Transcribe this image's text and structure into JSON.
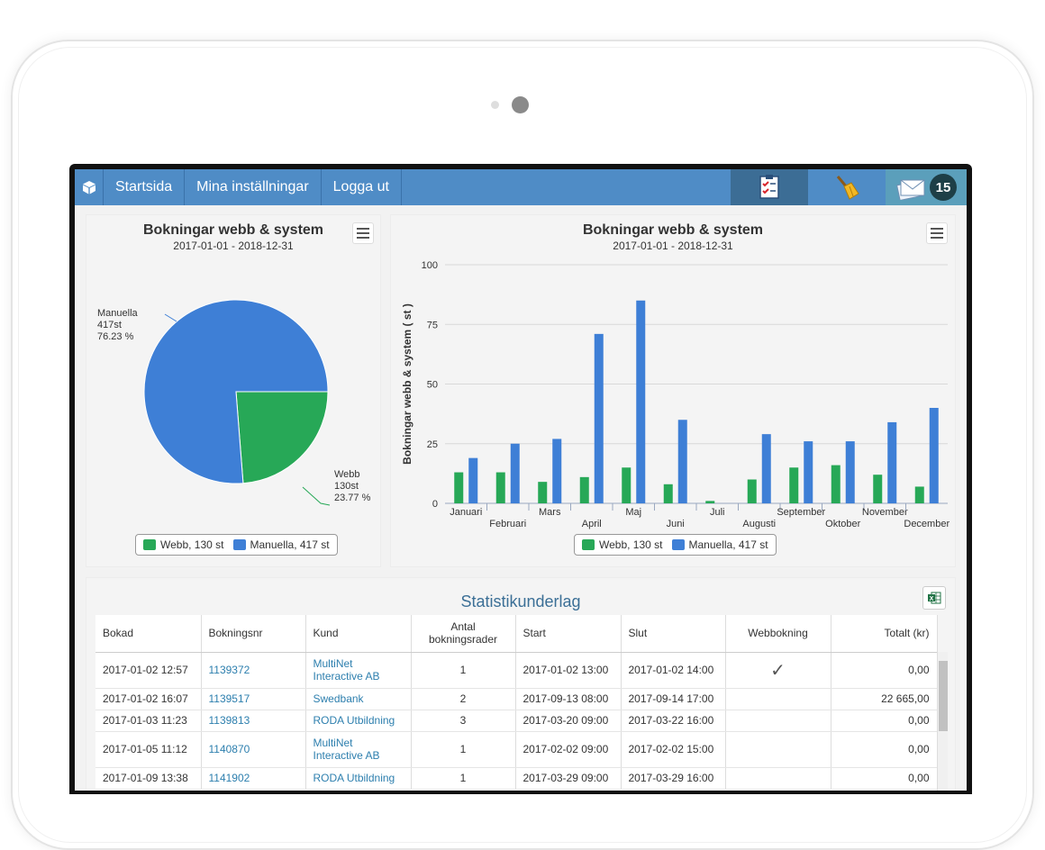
{
  "nav": {
    "items": [
      "Startsida",
      "Mina inställningar",
      "Logga ut"
    ],
    "badge_count": "15",
    "icons": [
      "box-icon",
      "checklist-icon",
      "broom-icon",
      "mail-icon"
    ]
  },
  "pie_chart": {
    "title": "Bokningar webb & system",
    "subtitle": "2017-01-01 - 2018-12-31",
    "label_manuella": [
      "Manuella",
      "417st",
      "76.23 %"
    ],
    "label_webb": [
      "Webb",
      "130st",
      "23.77 %"
    ],
    "legend": [
      "Webb, 130 st",
      "Manuella, 417 st"
    ]
  },
  "bar_chart": {
    "title": "Bokningar webb & system",
    "subtitle": "2017-01-01 - 2018-12-31",
    "legend": [
      "Webb, 130 st",
      "Manuella, 417 st"
    ]
  },
  "colors": {
    "webb": "#27a857",
    "manuella": "#3e7fd6",
    "nav": "#4f8cc6"
  },
  "chart_data": [
    {
      "type": "pie",
      "title": "Bokningar webb & system",
      "subtitle": "2017-01-01 - 2018-12-31",
      "slices": [
        {
          "name": "Webb",
          "value": 130,
          "percent": 23.77
        },
        {
          "name": "Manuella",
          "value": 417,
          "percent": 76.23
        }
      ],
      "legend_placement": "bottom"
    },
    {
      "type": "bar",
      "title": "Bokningar webb & system",
      "subtitle": "2017-01-01 - 2018-12-31",
      "ylabel": "Bokningar webb & system ( st )",
      "ylim": [
        0,
        100
      ],
      "yticks": [
        "0",
        "25",
        "50",
        "75",
        "100"
      ],
      "categories": [
        "Januari",
        "Februari",
        "Mars",
        "April",
        "Maj",
        "Juni",
        "Juli",
        "Augusti",
        "September",
        "Oktober",
        "November",
        "December"
      ],
      "series": [
        {
          "name": "Webb",
          "values": [
            13,
            13,
            9,
            11,
            15,
            8,
            1,
            10,
            15,
            16,
            12,
            7
          ]
        },
        {
          "name": "Manuella",
          "values": [
            19,
            25,
            27,
            71,
            85,
            35,
            0,
            29,
            26,
            26,
            34,
            40
          ]
        }
      ],
      "grid": true,
      "legend_placement": "bottom"
    }
  ],
  "table": {
    "title": "Statistikunderlag",
    "headers": [
      "Bokad",
      "Bokningsnr",
      "Kund",
      "Antal bokningsrader",
      "Start",
      "Slut",
      "Webbokning",
      "Totalt (kr)"
    ],
    "rows": [
      {
        "bokad": "2017-01-02 12:57",
        "nr": "1139372",
        "kund": "MultiNet Interactive AB",
        "antal": "1",
        "start": "2017-01-02 13:00",
        "slut": "2017-01-02 14:00",
        "webb": "✓",
        "totalt": "0,00"
      },
      {
        "bokad": "2017-01-02 16:07",
        "nr": "1139517",
        "kund": "Swedbank",
        "antal": "2",
        "start": "2017-09-13 08:00",
        "slut": "2017-09-14 17:00",
        "webb": "",
        "totalt": "22 665,00"
      },
      {
        "bokad": "2017-01-03 11:23",
        "nr": "1139813",
        "kund": "RODA Utbildning",
        "antal": "3",
        "start": "2017-03-20 09:00",
        "slut": "2017-03-22 16:00",
        "webb": "",
        "totalt": "0,00"
      },
      {
        "bokad": "2017-01-05 11:12",
        "nr": "1140870",
        "kund": "MultiNet Interactive AB",
        "antal": "1",
        "start": "2017-02-02 09:00",
        "slut": "2017-02-02 15:00",
        "webb": "",
        "totalt": "0,00"
      },
      {
        "bokad": "2017-01-09 13:38",
        "nr": "1141902",
        "kund": "RODA Utbildning",
        "antal": "1",
        "start": "2017-03-29 09:00",
        "slut": "2017-03-29 16:00",
        "webb": "",
        "totalt": "0,00"
      }
    ]
  }
}
